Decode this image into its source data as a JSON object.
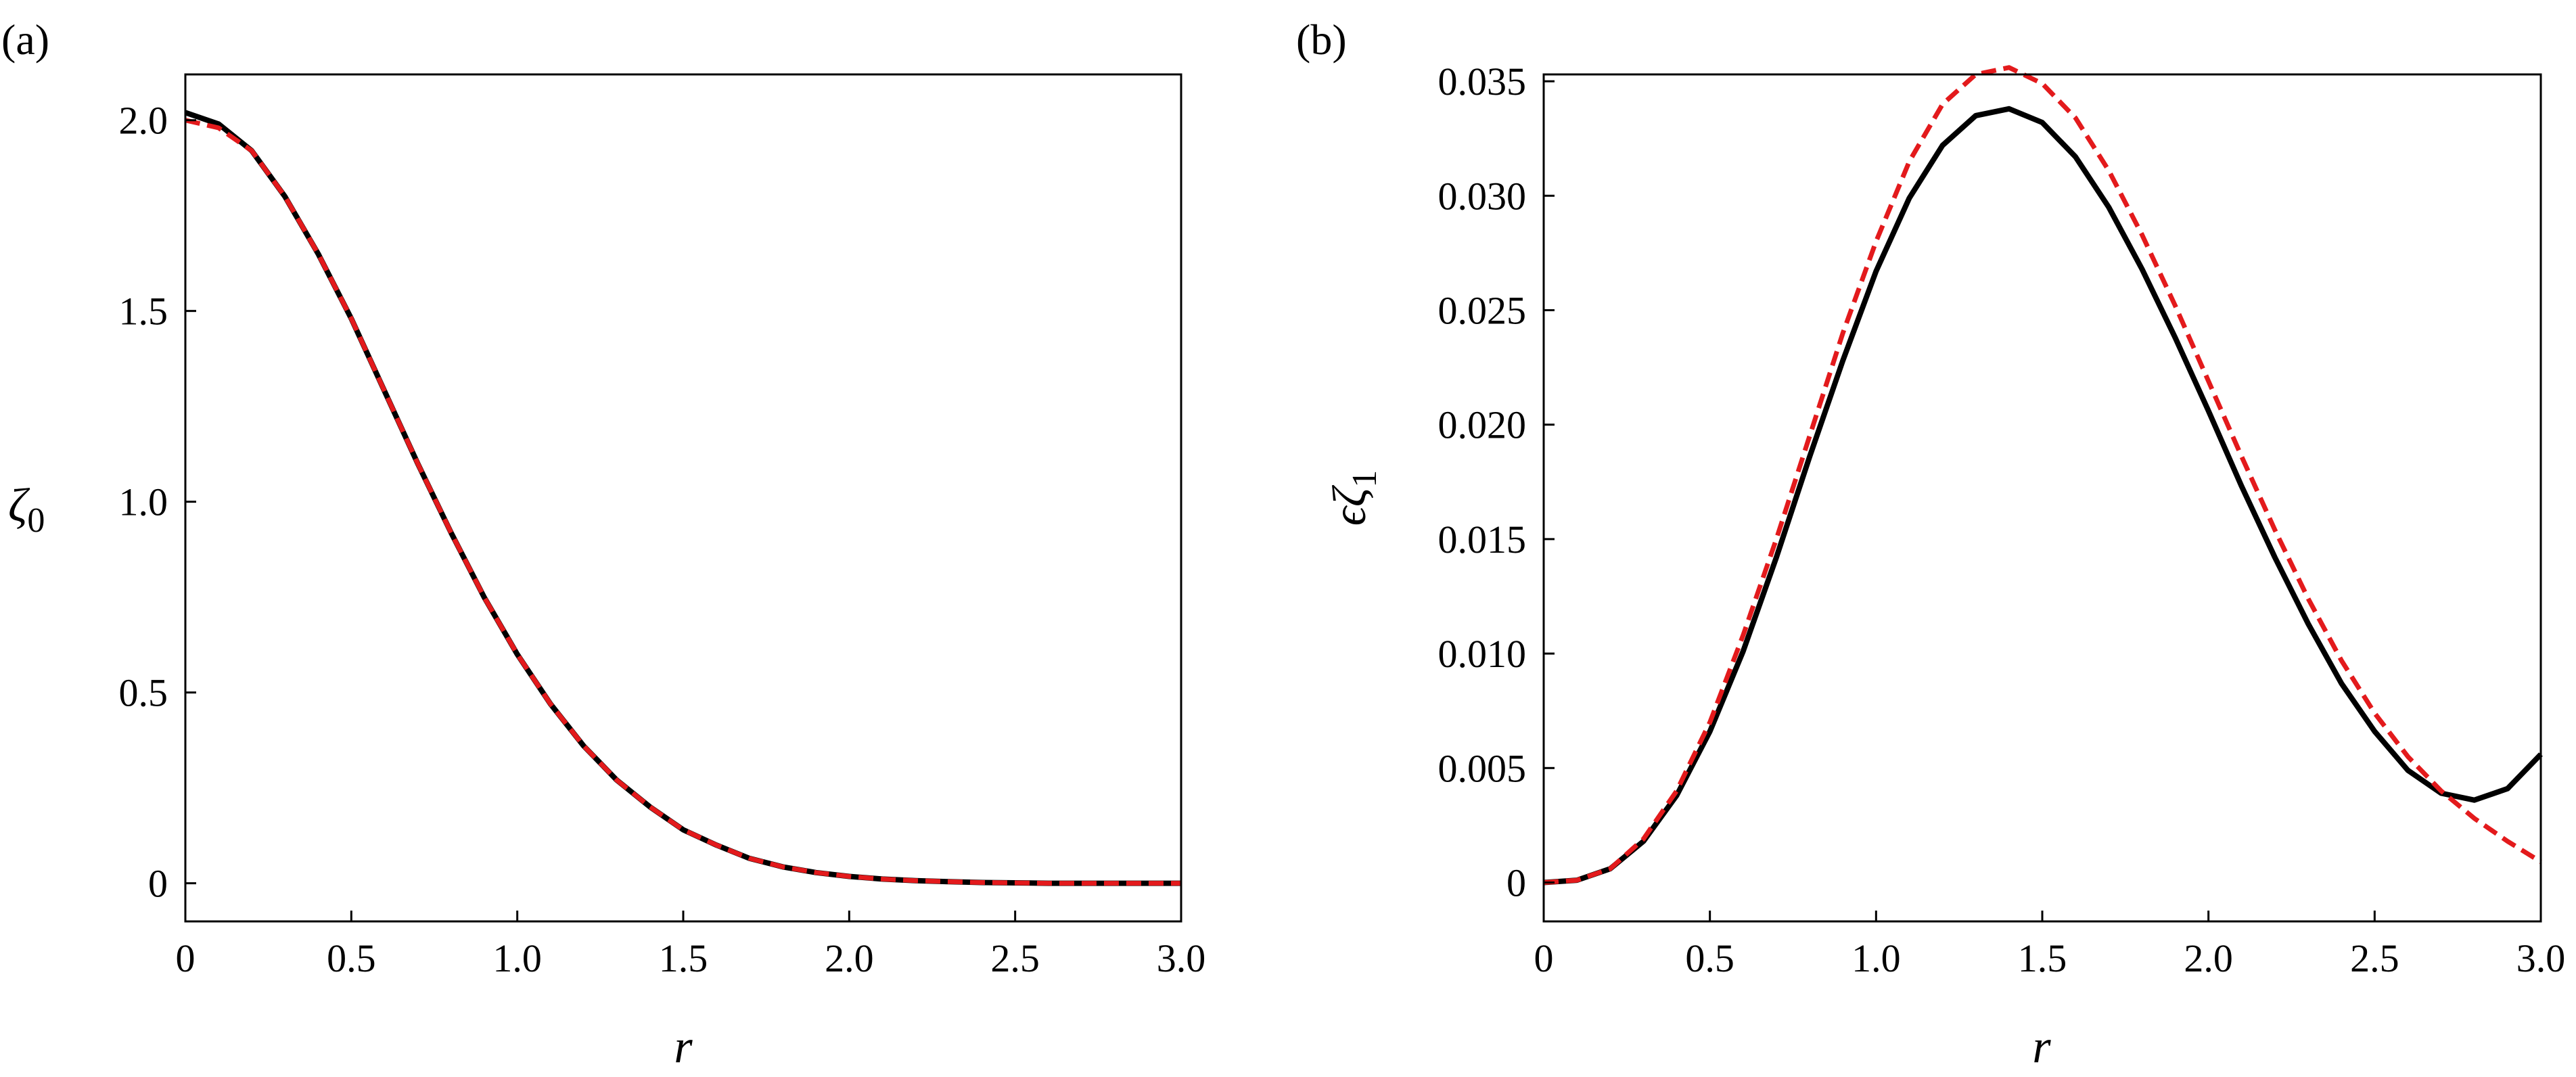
{
  "chart_data": [
    {
      "panel_label": "(a)",
      "type": "line",
      "xlabel": "r",
      "ylabel": "ζ",
      "ylabel_subscript": "0",
      "xlim": [
        0,
        3.0
      ],
      "ylim": [
        -0.1,
        2.12
      ],
      "grid": false,
      "x_ticks": [
        0,
        0.5,
        1.0,
        1.5,
        2.0,
        2.5,
        3.0
      ],
      "x_tick_labels": [
        "0",
        "0.5",
        "1.0",
        "1.5",
        "2.0",
        "2.5",
        "3.0"
      ],
      "y_ticks": [
        0,
        0.5,
        1.0,
        1.5,
        2.0
      ],
      "y_tick_labels": [
        "0",
        "0.5",
        "1.0",
        "1.5",
        "2.0"
      ],
      "x": [
        0,
        0.1,
        0.2,
        0.3,
        0.4,
        0.5,
        0.6,
        0.7,
        0.8,
        0.9,
        1.0,
        1.1,
        1.2,
        1.3,
        1.4,
        1.5,
        1.6,
        1.7,
        1.8,
        1.9,
        2.0,
        2.1,
        2.2,
        2.3,
        2.4,
        2.5,
        2.6,
        2.7,
        2.8,
        2.9,
        3.0
      ],
      "series": [
        {
          "color": "#000000",
          "style": "solid",
          "values": [
            2.02,
            1.99,
            1.92,
            1.8,
            1.65,
            1.48,
            1.29,
            1.1,
            0.92,
            0.75,
            0.6,
            0.47,
            0.36,
            0.27,
            0.2,
            0.14,
            0.1,
            0.065,
            0.043,
            0.028,
            0.018,
            0.011,
            0.007,
            0.004,
            0.002,
            0.001,
            0.0,
            0.0,
            0.0,
            0.0,
            0.0
          ]
        },
        {
          "color": "#e31a1c",
          "style": "dashed",
          "values": [
            2.0,
            1.98,
            1.92,
            1.8,
            1.65,
            1.48,
            1.29,
            1.1,
            0.92,
            0.75,
            0.6,
            0.47,
            0.36,
            0.27,
            0.2,
            0.14,
            0.1,
            0.065,
            0.043,
            0.028,
            0.018,
            0.011,
            0.007,
            0.004,
            0.002,
            0.001,
            0.0,
            0.0,
            0.0,
            0.0,
            0.0
          ]
        }
      ]
    },
    {
      "panel_label": "(b)",
      "type": "line",
      "xlabel": "r",
      "ylabel": "ϵζ",
      "ylabel_subscript": "1",
      "xlim": [
        0,
        3.0
      ],
      "ylim": [
        -0.0017,
        0.0353
      ],
      "grid": false,
      "x_ticks": [
        0,
        0.5,
        1.0,
        1.5,
        2.0,
        2.5,
        3.0
      ],
      "x_tick_labels": [
        "0",
        "0.5",
        "1.0",
        "1.5",
        "2.0",
        "2.5",
        "3.0"
      ],
      "y_ticks": [
        0,
        0.005,
        0.01,
        0.015,
        0.02,
        0.025,
        0.03,
        0.035
      ],
      "y_tick_labels": [
        "0",
        "0.005",
        "0.010",
        "0.015",
        "0.020",
        "0.025",
        "0.030",
        "0.035"
      ],
      "x": [
        0,
        0.1,
        0.2,
        0.3,
        0.4,
        0.5,
        0.6,
        0.7,
        0.8,
        0.9,
        1.0,
        1.1,
        1.2,
        1.3,
        1.4,
        1.5,
        1.6,
        1.7,
        1.8,
        1.9,
        2.0,
        2.1,
        2.2,
        2.3,
        2.4,
        2.5,
        2.6,
        2.7,
        2.8,
        2.9,
        3.0
      ],
      "series": [
        {
          "color": "#000000",
          "style": "solid",
          "values": [
            0.0,
            0.0001,
            0.0006,
            0.0018,
            0.0038,
            0.0066,
            0.0101,
            0.0142,
            0.0186,
            0.0228,
            0.0267,
            0.0299,
            0.0322,
            0.0335,
            0.0338,
            0.0332,
            0.0317,
            0.0295,
            0.0268,
            0.0238,
            0.0206,
            0.0173,
            0.0142,
            0.0113,
            0.0087,
            0.0066,
            0.0049,
            0.0039,
            0.0036,
            0.0041,
            0.0056
          ]
        },
        {
          "color": "#e31a1c",
          "style": "dashed",
          "values": [
            0.0,
            0.0001,
            0.0006,
            0.0019,
            0.004,
            0.007,
            0.0108,
            0.015,
            0.0195,
            0.024,
            0.028,
            0.0315,
            0.034,
            0.0353,
            0.0356,
            0.0349,
            0.0334,
            0.0311,
            0.0283,
            0.0252,
            0.0219,
            0.0186,
            0.0154,
            0.0124,
            0.0097,
            0.0074,
            0.0055,
            0.004,
            0.0028,
            0.0018,
            0.0009
          ]
        }
      ]
    }
  ]
}
